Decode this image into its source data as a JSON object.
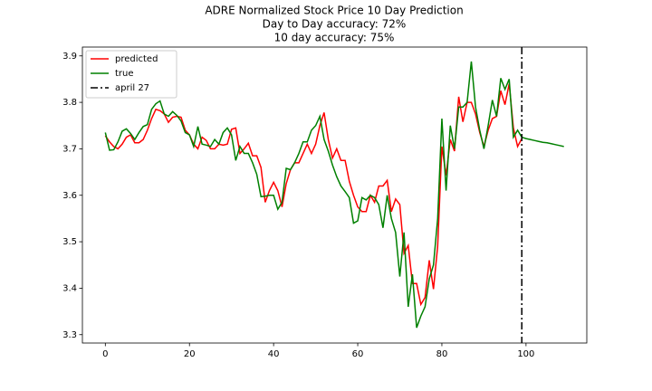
{
  "chart_data": {
    "type": "line",
    "title": "ADRE Normalized Stock Price 10 Day Prediction",
    "subtitle": [
      "Day to Day accuracy: 72%",
      "10 day accuracy: 75%"
    ],
    "x": [
      0,
      1,
      2,
      3,
      4,
      5,
      6,
      7,
      8,
      9,
      10,
      11,
      12,
      13,
      14,
      15,
      16,
      17,
      18,
      19,
      20,
      21,
      22,
      23,
      24,
      25,
      26,
      27,
      28,
      29,
      30,
      31,
      32,
      33,
      34,
      35,
      36,
      37,
      38,
      39,
      40,
      41,
      42,
      43,
      44,
      45,
      46,
      47,
      48,
      49,
      50,
      51,
      52,
      53,
      54,
      55,
      56,
      57,
      58,
      59,
      60,
      61,
      62,
      63,
      64,
      65,
      66,
      67,
      68,
      69,
      70,
      71,
      72,
      73,
      74,
      75,
      76,
      77,
      78,
      79,
      80,
      81,
      82,
      83,
      84,
      85,
      86,
      87,
      88,
      89,
      90,
      91,
      92,
      93,
      94,
      95,
      96,
      97,
      98,
      99,
      100,
      101,
      102,
      103,
      104,
      105,
      106,
      107,
      108,
      109
    ],
    "series": [
      {
        "name": "predicted",
        "color": "#ff0000",
        "values": [
          3.728,
          3.715,
          3.705,
          3.7,
          3.71,
          3.725,
          3.73,
          3.713,
          3.713,
          3.72,
          3.74,
          3.765,
          3.785,
          3.782,
          3.775,
          3.757,
          3.768,
          3.77,
          3.768,
          3.74,
          3.73,
          3.71,
          3.7,
          3.725,
          3.718,
          3.7,
          3.7,
          3.71,
          3.708,
          3.71,
          3.742,
          3.745,
          3.69,
          3.7,
          3.712,
          3.685,
          3.685,
          3.66,
          3.585,
          3.61,
          3.628,
          3.61,
          3.575,
          3.625,
          3.655,
          3.67,
          3.67,
          3.69,
          3.71,
          3.69,
          3.71,
          3.75,
          3.778,
          3.72,
          3.68,
          3.7,
          3.675,
          3.675,
          3.63,
          3.6,
          3.575,
          3.565,
          3.565,
          3.6,
          3.585,
          3.62,
          3.62,
          3.632,
          3.565,
          3.592,
          3.58,
          3.475,
          3.492,
          3.41,
          3.41,
          3.365,
          3.38,
          3.46,
          3.398,
          3.49,
          3.705,
          3.643,
          3.72,
          3.695,
          3.812,
          3.758,
          3.8,
          3.8,
          3.775,
          3.735,
          3.705,
          3.74,
          3.765,
          3.77,
          3.825,
          3.795,
          3.84,
          3.745,
          3.705,
          3.722,
          null,
          null,
          null,
          null,
          null,
          null,
          null,
          null,
          null,
          null
        ]
      },
      {
        "name": "true",
        "color": "#008000",
        "values": [
          3.735,
          3.697,
          3.698,
          3.715,
          3.738,
          3.743,
          3.733,
          3.72,
          3.735,
          3.748,
          3.752,
          3.785,
          3.797,
          3.803,
          3.775,
          3.77,
          3.78,
          3.772,
          3.76,
          3.735,
          3.73,
          3.705,
          3.748,
          3.71,
          3.708,
          3.705,
          3.72,
          3.71,
          3.735,
          3.745,
          3.73,
          3.675,
          3.705,
          3.69,
          3.69,
          3.67,
          3.645,
          3.597,
          3.598,
          3.6,
          3.6,
          3.57,
          3.585,
          3.658,
          3.655,
          3.67,
          3.69,
          3.715,
          3.715,
          3.74,
          3.75,
          3.77,
          3.72,
          3.695,
          3.665,
          3.64,
          3.62,
          3.608,
          3.595,
          3.54,
          3.545,
          3.595,
          3.59,
          3.6,
          3.595,
          3.58,
          3.53,
          3.6,
          3.55,
          3.52,
          3.425,
          3.52,
          3.36,
          3.43,
          3.315,
          3.34,
          3.36,
          3.42,
          3.45,
          3.55,
          3.765,
          3.61,
          3.75,
          3.7,
          3.79,
          3.79,
          3.8,
          3.888,
          3.79,
          3.74,
          3.7,
          3.75,
          3.805,
          3.77,
          3.852,
          3.828,
          3.85,
          3.725,
          3.74,
          3.725,
          3.722,
          3.72,
          3.718,
          3.716,
          3.714,
          3.713,
          3.711,
          3.709,
          3.707,
          3.705
        ]
      }
    ],
    "vline": {
      "x": 99,
      "label": "april 27",
      "color": "#000000"
    },
    "xlim": [
      -5.45,
      114.45
    ],
    "ylim": [
      3.282,
      3.919
    ],
    "xticks": [
      0,
      20,
      40,
      60,
      80,
      100
    ],
    "yticks": [
      3.3,
      3.4,
      3.5,
      3.6,
      3.7,
      3.8,
      3.9
    ],
    "grid": false,
    "legend": "upper left"
  }
}
